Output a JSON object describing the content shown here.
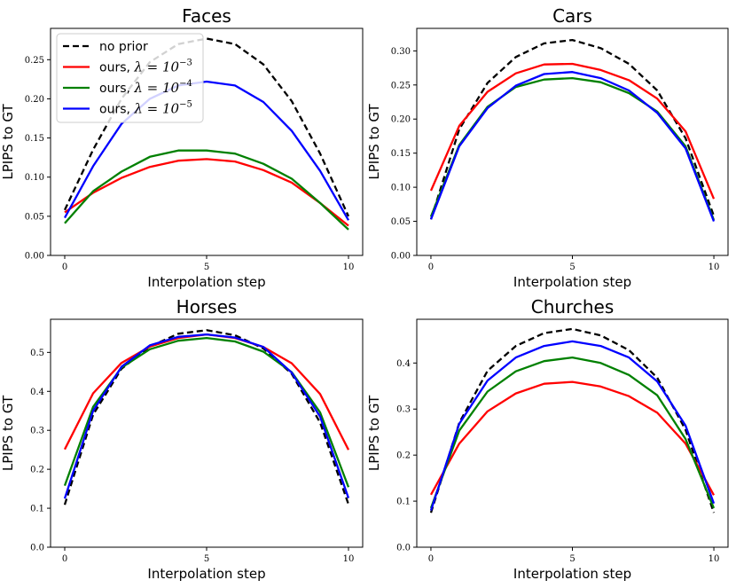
{
  "chart_data": [
    {
      "type": "line",
      "title": "Faces",
      "xlabel": "Interpolation step",
      "ylabel": "LPIPS to GT",
      "x": [
        0,
        1,
        2,
        3,
        4,
        5,
        6,
        7,
        8,
        9,
        10
      ],
      "xlim": [
        -0.5,
        10.5
      ],
      "ylim": [
        0,
        0.29
      ],
      "xticks": [
        0,
        5,
        10
      ],
      "yticks": [
        "0.00",
        "0.05",
        "0.10",
        "0.15",
        "0.20",
        "0.25"
      ],
      "legend": {
        "location": "upper-left",
        "entries": [
          {
            "text": "no prior"
          },
          {
            "text": "ours, ",
            "math": "λ = 10",
            "exp": "−3"
          },
          {
            "text": "ours, ",
            "math": "λ = 10",
            "exp": "−4"
          },
          {
            "text": "ours, ",
            "math": "λ = 10",
            "exp": "−5"
          }
        ]
      },
      "series": [
        {
          "name": "no prior",
          "color": "#000000",
          "dash": true,
          "values": [
            0.058,
            0.135,
            0.2,
            0.247,
            0.27,
            0.277,
            0.27,
            0.244,
            0.197,
            0.13,
            0.05
          ]
        },
        {
          "name": "ours, λ=10^-3",
          "color": "#ff0000",
          "dash": false,
          "values": [
            0.055,
            0.08,
            0.099,
            0.113,
            0.121,
            0.123,
            0.12,
            0.109,
            0.093,
            0.067,
            0.038
          ]
        },
        {
          "name": "ours, λ=10^-4",
          "color": "#008000",
          "dash": false,
          "values": [
            0.041,
            0.082,
            0.107,
            0.126,
            0.134,
            0.134,
            0.13,
            0.117,
            0.098,
            0.067,
            0.033
          ]
        },
        {
          "name": "ours, λ=10^-5",
          "color": "#0000ff",
          "dash": false,
          "values": [
            0.048,
            0.114,
            0.168,
            0.2,
            0.217,
            0.222,
            0.217,
            0.196,
            0.159,
            0.108,
            0.045
          ]
        }
      ]
    },
    {
      "type": "line",
      "title": "Cars",
      "xlabel": "Interpolation step",
      "ylabel": "LPIPS to GT",
      "x": [
        0,
        1,
        2,
        3,
        4,
        5,
        6,
        7,
        8,
        9,
        10
      ],
      "xlim": [
        -0.5,
        10.5
      ],
      "ylim": [
        0,
        0.333
      ],
      "xticks": [
        0,
        5,
        10
      ],
      "yticks": [
        "0.00",
        "0.05",
        "0.10",
        "0.15",
        "0.20",
        "0.25",
        "0.30"
      ],
      "series": [
        {
          "name": "no prior",
          "color": "#000000",
          "dash": true,
          "values": [
            0.053,
            0.185,
            0.253,
            0.291,
            0.311,
            0.316,
            0.304,
            0.281,
            0.242,
            0.172,
            0.058
          ]
        },
        {
          "name": "ours, λ=10^-3",
          "color": "#ff0000",
          "dash": false,
          "values": [
            0.095,
            0.19,
            0.24,
            0.267,
            0.28,
            0.281,
            0.272,
            0.257,
            0.23,
            0.182,
            0.083
          ]
        },
        {
          "name": "ours, λ=10^-4",
          "color": "#008000",
          "dash": false,
          "values": [
            0.057,
            0.162,
            0.218,
            0.247,
            0.258,
            0.26,
            0.254,
            0.238,
            0.211,
            0.16,
            0.052
          ]
        },
        {
          "name": "ours, λ=10^-5",
          "color": "#0000ff",
          "dash": false,
          "values": [
            0.053,
            0.16,
            0.216,
            0.249,
            0.266,
            0.269,
            0.26,
            0.242,
            0.209,
            0.157,
            0.05
          ]
        }
      ]
    },
    {
      "type": "line",
      "title": "Horses",
      "xlabel": "Interpolation step",
      "ylabel": "LPIPS to GT",
      "x": [
        0,
        1,
        2,
        3,
        4,
        5,
        6,
        7,
        8,
        9,
        10
      ],
      "xlim": [
        -0.5,
        10.5
      ],
      "ylim": [
        0,
        0.585
      ],
      "xticks": [
        0,
        5,
        10
      ],
      "yticks": [
        "0.0",
        "0.1",
        "0.2",
        "0.3",
        "0.4",
        "0.5"
      ],
      "series": [
        {
          "name": "no prior",
          "color": "#000000",
          "dash": true,
          "values": [
            0.109,
            0.34,
            0.458,
            0.515,
            0.548,
            0.557,
            0.544,
            0.51,
            0.445,
            0.32,
            0.11
          ]
        },
        {
          "name": "ours, λ=10^-3",
          "color": "#ff0000",
          "dash": false,
          "values": [
            0.251,
            0.395,
            0.473,
            0.515,
            0.537,
            0.546,
            0.537,
            0.514,
            0.472,
            0.393,
            0.25
          ]
        },
        {
          "name": "ours, λ=10^-4",
          "color": "#008000",
          "dash": false,
          "values": [
            0.158,
            0.36,
            0.461,
            0.508,
            0.53,
            0.537,
            0.528,
            0.502,
            0.449,
            0.346,
            0.154
          ]
        },
        {
          "name": "ours, λ=10^-5",
          "color": "#0000ff",
          "dash": false,
          "values": [
            0.125,
            0.35,
            0.463,
            0.518,
            0.54,
            0.546,
            0.538,
            0.514,
            0.448,
            0.335,
            0.126
          ]
        }
      ]
    },
    {
      "type": "line",
      "title": "Churches",
      "xlabel": "Interpolation step",
      "ylabel": "LPIPS to GT",
      "x": [
        0,
        1,
        2,
        3,
        4,
        5,
        6,
        7,
        8,
        9,
        10
      ],
      "xlim": [
        -0.5,
        10.5
      ],
      "ylim": [
        0,
        0.495
      ],
      "xticks": [
        0,
        5,
        10
      ],
      "yticks": [
        "0.0",
        "0.1",
        "0.2",
        "0.3",
        "0.4"
      ],
      "series": [
        {
          "name": "no prior",
          "color": "#000000",
          "dash": true,
          "values": [
            0.075,
            0.27,
            0.383,
            0.437,
            0.465,
            0.474,
            0.46,
            0.428,
            0.368,
            0.255,
            0.075
          ]
        },
        {
          "name": "ours, λ=10^-3",
          "color": "#ff0000",
          "dash": false,
          "values": [
            0.114,
            0.225,
            0.295,
            0.334,
            0.355,
            0.359,
            0.349,
            0.328,
            0.292,
            0.225,
            0.113
          ]
        },
        {
          "name": "ours, λ=10^-4",
          "color": "#008000",
          "dash": false,
          "values": [
            0.085,
            0.253,
            0.338,
            0.382,
            0.404,
            0.412,
            0.4,
            0.374,
            0.33,
            0.235,
            0.085
          ]
        },
        {
          "name": "ours, λ=10^-5",
          "color": "#0000ff",
          "dash": false,
          "values": [
            0.08,
            0.268,
            0.362,
            0.412,
            0.437,
            0.447,
            0.437,
            0.412,
            0.36,
            0.264,
            0.095
          ]
        }
      ]
    }
  ]
}
